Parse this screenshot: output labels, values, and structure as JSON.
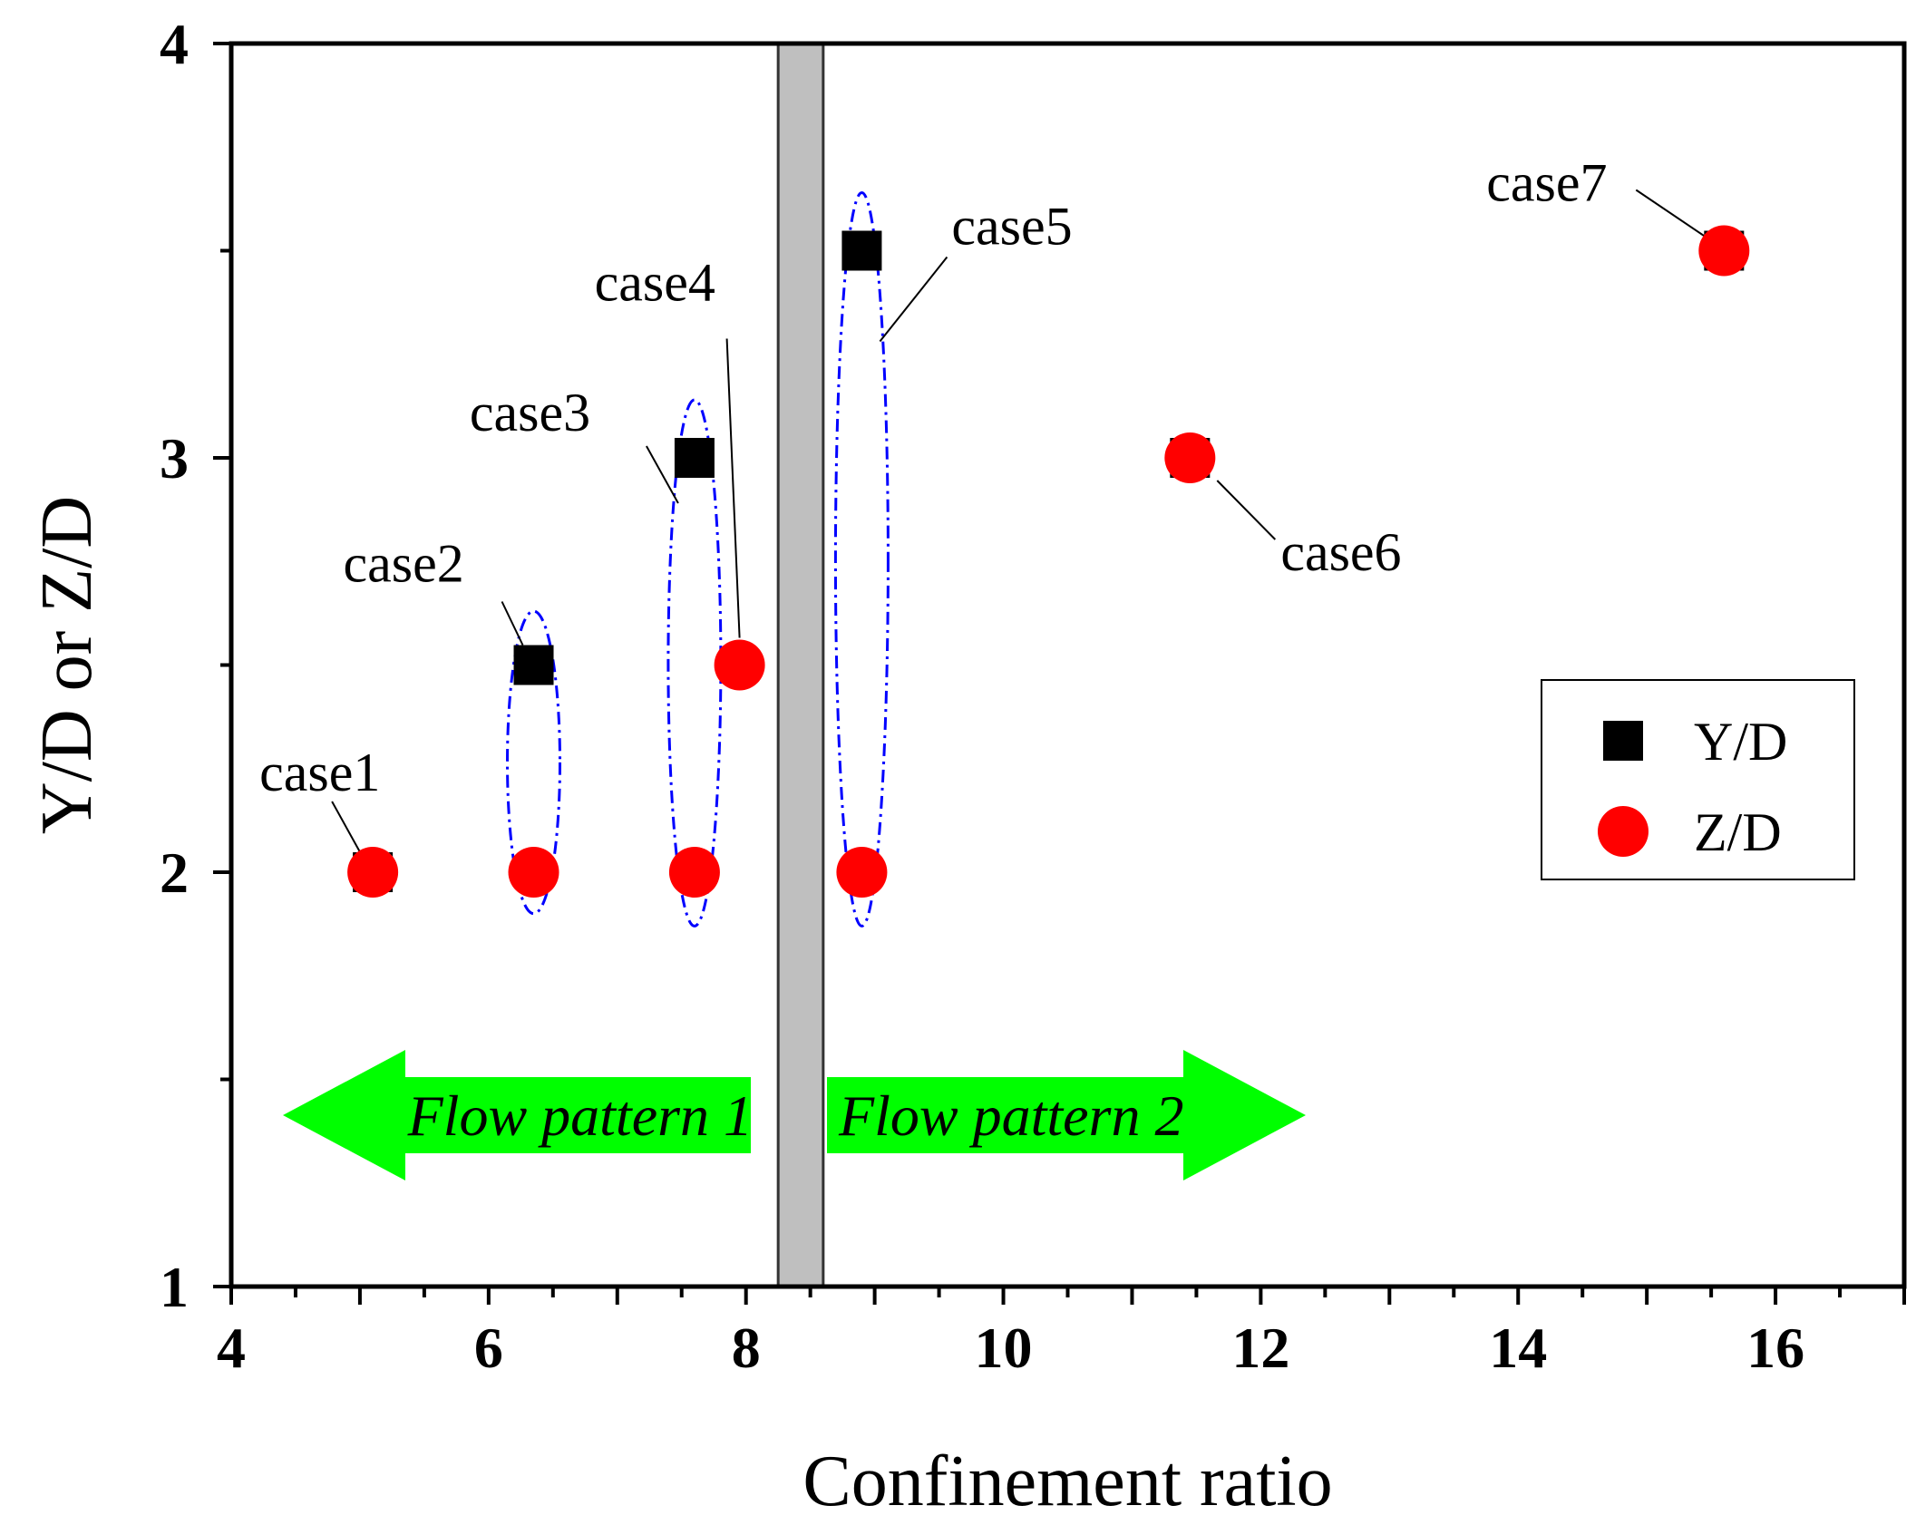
{
  "chart_data": {
    "type": "scatter",
    "title": "",
    "xlabel": "Confinement ratio",
    "ylabel": "Y/D or Z/D",
    "xlim": [
      4,
      17
    ],
    "ylim": [
      1,
      4
    ],
    "x_ticks": [
      4,
      6,
      8,
      10,
      12,
      14,
      16
    ],
    "y_ticks": [
      1,
      2,
      3,
      4
    ],
    "grid": false,
    "legend_position": "right",
    "series": [
      {
        "name": "Y/D",
        "marker": "square",
        "color": "#000000",
        "points": [
          {
            "x": 5.1,
            "y": 2.0
          },
          {
            "x": 6.35,
            "y": 2.5
          },
          {
            "x": 7.6,
            "y": 3.0
          },
          {
            "x": 8.9,
            "y": 3.5
          },
          {
            "x": 11.45,
            "y": 3.0
          },
          {
            "x": 15.6,
            "y": 3.5
          }
        ]
      },
      {
        "name": "Z/D",
        "marker": "circle",
        "color": "#ff0000",
        "points": [
          {
            "x": 5.1,
            "y": 2.0
          },
          {
            "x": 6.35,
            "y": 2.0
          },
          {
            "x": 7.6,
            "y": 2.0
          },
          {
            "x": 7.95,
            "y": 2.5
          },
          {
            "x": 8.9,
            "y": 2.0
          },
          {
            "x": 11.45,
            "y": 3.0
          },
          {
            "x": 15.6,
            "y": 3.5
          }
        ]
      }
    ],
    "annotations": [
      {
        "text": "case1",
        "x": 5.1,
        "y": 2.0
      },
      {
        "text": "case2",
        "x": 6.35,
        "y": 2.5
      },
      {
        "text": "case3",
        "x": 7.6,
        "y": 3.0
      },
      {
        "text": "case4",
        "x": 7.95,
        "y": 2.5
      },
      {
        "text": "case5",
        "x": 8.9,
        "y": 3.5
      },
      {
        "text": "case6",
        "x": 11.45,
        "y": 3.0
      },
      {
        "text": "case7",
        "x": 15.6,
        "y": 3.5
      }
    ],
    "boundary_band": {
      "x_range": [
        8.25,
        8.6
      ],
      "color": "#bfbfbf"
    },
    "flow_patterns": [
      {
        "label": "Flow pattern 1",
        "direction": "left"
      },
      {
        "label": "Flow pattern 2",
        "direction": "right"
      }
    ],
    "arrow_color": "#00ff00",
    "ellipse_color": "#0000ff"
  }
}
